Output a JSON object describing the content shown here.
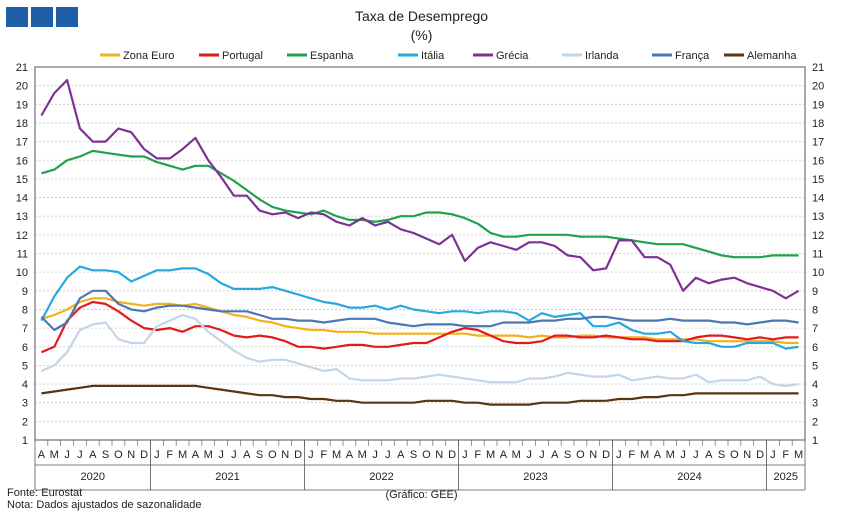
{
  "title": "Taxa de Desemprego",
  "subtitle": "(%)",
  "footer": {
    "source": "Fonte: Eurostat",
    "note": "Nota: Dados ajustados de sazonalidade",
    "credit": "(Gráfico: GEE)"
  },
  "logo": "GEE logo",
  "chart_data": {
    "type": "line",
    "title": "Taxa de Desemprego",
    "ylabel": "(%)",
    "xlabel": "",
    "ylim": [
      1,
      21
    ],
    "yticks": [
      1,
      2,
      3,
      4,
      5,
      6,
      7,
      8,
      9,
      10,
      11,
      12,
      13,
      14,
      15,
      16,
      17,
      18,
      19,
      20,
      21
    ],
    "grid": "horizontal",
    "legend": "top",
    "months": [
      "A",
      "M",
      "J",
      "J",
      "A",
      "S",
      "O",
      "N",
      "D",
      "J",
      "F",
      "M",
      "A",
      "M",
      "J",
      "J",
      "A",
      "S",
      "O",
      "N",
      "D",
      "J",
      "F",
      "M",
      "A",
      "M",
      "J",
      "J",
      "A",
      "S",
      "O",
      "N",
      "D",
      "J",
      "F",
      "M",
      "A",
      "M",
      "J",
      "J",
      "A",
      "S",
      "O",
      "N",
      "D",
      "J",
      "F",
      "M",
      "A",
      "M",
      "J",
      "J",
      "A",
      "S",
      "O",
      "N",
      "D",
      "J",
      "F",
      "M"
    ],
    "years": [
      {
        "label": "2020",
        "start": 0,
        "end": 9
      },
      {
        "label": "2021",
        "start": 9,
        "end": 21
      },
      {
        "label": "2022",
        "start": 21,
        "end": 33
      },
      {
        "label": "2023",
        "start": 33,
        "end": 45
      },
      {
        "label": "2024",
        "start": 45,
        "end": 57
      },
      {
        "label": "2025",
        "start": 57,
        "end": 60
      }
    ],
    "series": [
      {
        "name": "Zona Euro",
        "color": "#f2b21b",
        "values": [
          7.5,
          7.7,
          8.0,
          8.4,
          8.6,
          8.6,
          8.4,
          8.3,
          8.2,
          8.3,
          8.3,
          8.2,
          8.3,
          8.1,
          7.9,
          7.7,
          7.6,
          7.4,
          7.3,
          7.1,
          7.0,
          6.9,
          6.9,
          6.8,
          6.8,
          6.8,
          6.7,
          6.7,
          6.7,
          6.7,
          6.7,
          6.7,
          6.7,
          6.7,
          6.6,
          6.6,
          6.6,
          6.6,
          6.5,
          6.6,
          6.5,
          6.5,
          6.6,
          6.6,
          6.5,
          6.5,
          6.5,
          6.5,
          6.4,
          6.4,
          6.4,
          6.4,
          6.3,
          6.3,
          6.3,
          6.3,
          6.3,
          6.3,
          6.2,
          6.2
        ]
      },
      {
        "name": "Portugal",
        "color": "#e31a1c",
        "values": [
          5.7,
          6.0,
          7.4,
          8.1,
          8.4,
          8.3,
          7.9,
          7.4,
          7.0,
          6.9,
          7.0,
          6.8,
          7.1,
          7.1,
          6.9,
          6.6,
          6.5,
          6.6,
          6.5,
          6.3,
          6.0,
          6.0,
          5.9,
          6.0,
          6.1,
          6.1,
          6.0,
          6.0,
          6.1,
          6.2,
          6.2,
          6.5,
          6.8,
          7.0,
          6.9,
          6.6,
          6.3,
          6.2,
          6.2,
          6.3,
          6.6,
          6.6,
          6.5,
          6.5,
          6.6,
          6.5,
          6.4,
          6.4,
          6.3,
          6.3,
          6.3,
          6.5,
          6.6,
          6.6,
          6.5,
          6.4,
          6.5,
          6.4,
          6.5,
          6.5
        ]
      },
      {
        "name": "Espanha",
        "color": "#1fa24a",
        "values": [
          15.3,
          15.5,
          16.0,
          16.2,
          16.5,
          16.4,
          16.3,
          16.2,
          16.2,
          15.9,
          15.7,
          15.5,
          15.7,
          15.7,
          15.3,
          14.9,
          14.4,
          13.9,
          13.5,
          13.3,
          13.2,
          13.1,
          13.3,
          13.0,
          12.8,
          12.8,
          12.7,
          12.8,
          13.0,
          13.0,
          13.2,
          13.2,
          13.1,
          12.9,
          12.6,
          12.1,
          11.9,
          11.9,
          12.0,
          12.0,
          12.0,
          12.0,
          11.9,
          11.9,
          11.9,
          11.8,
          11.7,
          11.6,
          11.5,
          11.5,
          11.5,
          11.3,
          11.1,
          10.9,
          10.8,
          10.8,
          10.8,
          10.9,
          10.9,
          10.9
        ]
      },
      {
        "name": "Itália",
        "color": "#27a8df",
        "values": [
          7.4,
          8.7,
          9.7,
          10.3,
          10.1,
          10.1,
          10.0,
          9.5,
          9.8,
          10.1,
          10.1,
          10.2,
          10.2,
          9.9,
          9.4,
          9.1,
          9.1,
          9.1,
          9.2,
          9.0,
          8.8,
          8.6,
          8.4,
          8.3,
          8.1,
          8.1,
          8.2,
          8.0,
          8.2,
          8.0,
          7.9,
          7.8,
          7.9,
          7.9,
          7.8,
          7.9,
          7.9,
          7.8,
          7.4,
          7.8,
          7.6,
          7.7,
          7.8,
          7.1,
          7.1,
          7.3,
          6.9,
          6.7,
          6.7,
          6.8,
          6.3,
          6.2,
          6.2,
          6.0,
          6.0,
          6.2,
          6.2,
          6.2,
          5.9,
          6.0
        ]
      },
      {
        "name": "Grécia",
        "color": "#7b3294",
        "values": [
          18.4,
          19.6,
          20.3,
          17.7,
          17.0,
          17.0,
          17.7,
          17.5,
          16.6,
          16.1,
          16.1,
          16.6,
          17.2,
          16.0,
          15.1,
          14.1,
          14.1,
          13.3,
          13.1,
          13.2,
          12.9,
          13.2,
          13.1,
          12.7,
          12.5,
          12.9,
          12.5,
          12.7,
          12.3,
          12.1,
          11.8,
          11.5,
          12.0,
          10.6,
          11.3,
          11.6,
          11.4,
          11.2,
          11.6,
          11.6,
          11.4,
          10.9,
          10.8,
          10.1,
          10.2,
          11.7,
          11.7,
          10.8,
          10.8,
          10.4,
          9.0,
          9.7,
          9.4,
          9.6,
          9.7,
          9.4,
          9.2,
          9.0,
          8.6,
          9.0
        ]
      },
      {
        "name": "Irlanda",
        "color": "#c3d5e6",
        "values": [
          4.7,
          5.0,
          5.7,
          6.9,
          7.2,
          7.3,
          6.4,
          6.2,
          6.2,
          7.1,
          7.4,
          7.7,
          7.5,
          6.8,
          6.3,
          5.8,
          5.4,
          5.2,
          5.3,
          5.3,
          5.1,
          4.9,
          4.7,
          4.8,
          4.3,
          4.2,
          4.2,
          4.2,
          4.3,
          4.3,
          4.4,
          4.5,
          4.4,
          4.3,
          4.2,
          4.1,
          4.1,
          4.1,
          4.3,
          4.3,
          4.4,
          4.6,
          4.5,
          4.4,
          4.4,
          4.5,
          4.2,
          4.3,
          4.4,
          4.3,
          4.3,
          4.5,
          4.1,
          4.2,
          4.2,
          4.2,
          4.4,
          4.0,
          3.9,
          4.0
        ]
      },
      {
        "name": "França",
        "color": "#4a78b3",
        "values": [
          7.6,
          6.9,
          7.3,
          8.6,
          9.0,
          9.0,
          8.3,
          8.0,
          7.9,
          8.1,
          8.2,
          8.2,
          8.1,
          8.0,
          7.9,
          7.9,
          7.9,
          7.7,
          7.5,
          7.5,
          7.4,
          7.4,
          7.3,
          7.4,
          7.5,
          7.5,
          7.5,
          7.3,
          7.2,
          7.1,
          7.2,
          7.2,
          7.2,
          7.1,
          7.1,
          7.1,
          7.3,
          7.3,
          7.3,
          7.4,
          7.4,
          7.5,
          7.5,
          7.6,
          7.6,
          7.5,
          7.4,
          7.4,
          7.4,
          7.5,
          7.4,
          7.4,
          7.4,
          7.3,
          7.3,
          7.2,
          7.3,
          7.4,
          7.4,
          7.3
        ]
      },
      {
        "name": "Alemanha",
        "color": "#5a3511",
        "values": [
          3.5,
          3.6,
          3.7,
          3.8,
          3.9,
          3.9,
          3.9,
          3.9,
          3.9,
          3.9,
          3.9,
          3.9,
          3.9,
          3.8,
          3.7,
          3.6,
          3.5,
          3.4,
          3.4,
          3.3,
          3.3,
          3.2,
          3.2,
          3.1,
          3.1,
          3.0,
          3.0,
          3.0,
          3.0,
          3.0,
          3.1,
          3.1,
          3.1,
          3.0,
          3.0,
          2.9,
          2.9,
          2.9,
          2.9,
          3.0,
          3.0,
          3.0,
          3.1,
          3.1,
          3.1,
          3.2,
          3.2,
          3.3,
          3.3,
          3.4,
          3.4,
          3.5,
          3.5,
          3.5,
          3.5,
          3.5,
          3.5,
          3.5,
          3.5,
          3.5
        ]
      }
    ]
  }
}
